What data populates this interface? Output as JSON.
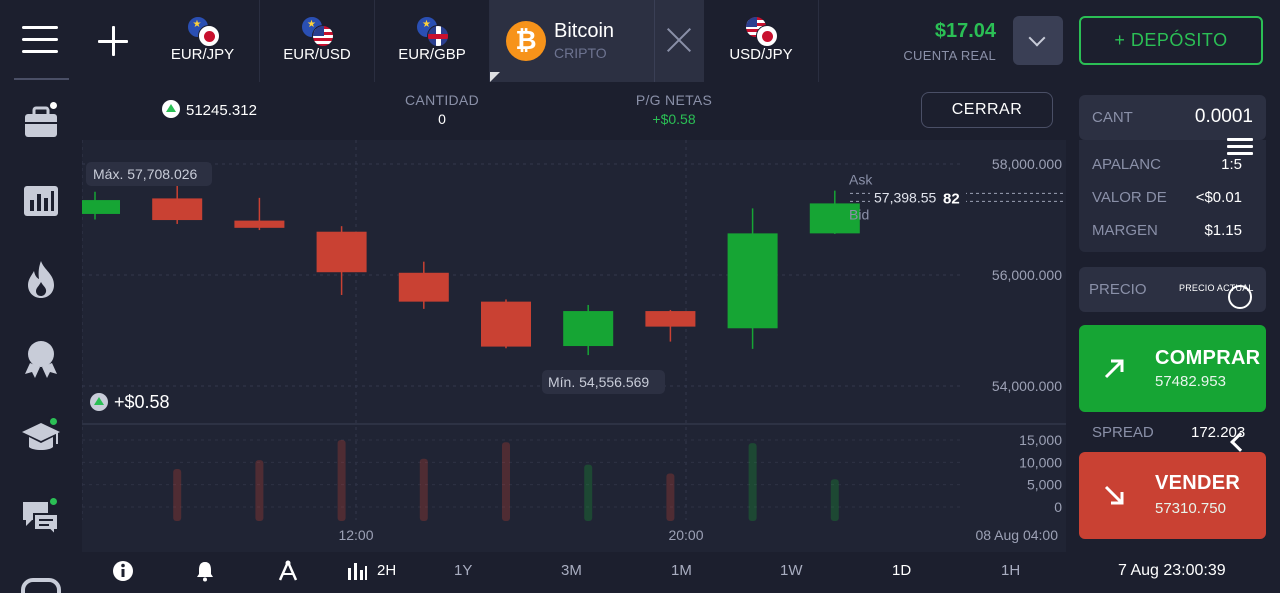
{
  "header": {
    "tabs": [
      {
        "label": "EUR/JPY",
        "flags": [
          "eu",
          "jp"
        ]
      },
      {
        "label": "EUR/USD",
        "flags": [
          "eu",
          "us"
        ]
      },
      {
        "label": "EUR/GBP",
        "flags": [
          "eu",
          "gb"
        ]
      },
      {
        "label": "USD/JPY",
        "flags": [
          "us",
          "jp"
        ]
      }
    ],
    "active_tab": {
      "name": "Bitcoin",
      "type": "CRIPTO",
      "icon": "bitcoin-icon"
    },
    "balance": "$17.04",
    "account_type": "CUENTA REAL",
    "deposit_label": "+ DEPÓSITO"
  },
  "sidebar": {
    "items": [
      {
        "name": "portfolio-icon",
        "badge": "white"
      },
      {
        "name": "chart-stats-icon",
        "badge": null
      },
      {
        "name": "fire-icon",
        "badge": null
      },
      {
        "name": "award-icon",
        "badge": null
      },
      {
        "name": "education-cap-icon",
        "badge": "green"
      },
      {
        "name": "chat-icon",
        "badge": "green"
      },
      {
        "name": "gamepad-icon",
        "badge": null
      }
    ]
  },
  "info_bar": {
    "price": "51245.312",
    "quantity_label": "CANTIDAD",
    "quantity_value": "0",
    "pnl_label": "P/G NETAS",
    "pnl_value": "+$0.58",
    "close_label": "CERRAR"
  },
  "chart": {
    "max_label": "Máx. 57,708.026",
    "min_label": "Mín. 54,556.569",
    "ask_label": "Ask",
    "bid_label": "Bid",
    "current_price_main": "57,398.55",
    "current_price_tail": "82",
    "pl_badge": "+$0.58"
  },
  "chart_data": {
    "type": "candlestick",
    "price_ticks": [
      "58,000.000",
      "56,000.000",
      "54,000.000"
    ],
    "price_tick_values": [
      58000,
      56000,
      54000
    ],
    "volume_ticks": [
      "15,000",
      "10,000",
      "5,000",
      "0"
    ],
    "volume_tick_values": [
      15000,
      10000,
      5000,
      0
    ],
    "time_ticks": [
      "12:00",
      "20:00",
      "08 Aug 04:00"
    ],
    "candles": [
      {
        "o": 57100,
        "c": 57350,
        "h": 57500,
        "l": 57000,
        "dir": "up"
      },
      {
        "o": 57380,
        "c": 56990,
        "h": 57708,
        "l": 56920,
        "dir": "down"
      },
      {
        "o": 56980,
        "c": 56850,
        "h": 57390,
        "l": 56810,
        "dir": "down"
      },
      {
        "o": 56780,
        "c": 56050,
        "h": 56880,
        "l": 55640,
        "dir": "down"
      },
      {
        "o": 56040,
        "c": 55520,
        "h": 56240,
        "l": 55390,
        "dir": "down"
      },
      {
        "o": 55520,
        "c": 54710,
        "h": 55560,
        "l": 54680,
        "dir": "down"
      },
      {
        "o": 54720,
        "c": 55350,
        "h": 55460,
        "l": 54557,
        "dir": "up"
      },
      {
        "o": 55350,
        "c": 55070,
        "h": 55370,
        "l": 54800,
        "dir": "down"
      },
      {
        "o": 55040,
        "c": 56750,
        "h": 57200,
        "l": 54670,
        "dir": "up"
      },
      {
        "o": 56750,
        "c": 57290,
        "h": 57520,
        "l": 56740,
        "dir": "up"
      }
    ],
    "volumes": [
      0,
      8500,
      10500,
      15000,
      10800,
      14500,
      9500,
      7500,
      14300,
      6200
    ]
  },
  "toolbar": {
    "intervals": [
      "2H",
      "1Y",
      "3M",
      "1M",
      "1W",
      "1D",
      "1H"
    ],
    "active": "1D",
    "datetime": "7 Aug 23:00:39"
  },
  "trade_panel": {
    "amount_label": "CANT",
    "amount_value": "0.0001",
    "leverage_label": "APALANC",
    "leverage_value": "1:5",
    "pip_label": "VALOR DE",
    "pip_value": "<$0.01",
    "margin_label": "MARGEN",
    "margin_value": "$1.15",
    "price_label": "PRECIO",
    "price_sub": "PRECIO ACTUAL",
    "buy_label": "COMPRAR",
    "buy_price": "57482.953",
    "spread_label": "SPREAD",
    "spread_value": "172.203",
    "sell_label": "VENDER",
    "sell_price": "57310.750"
  },
  "colors": {
    "up": "#16a534",
    "down": "#c94133",
    "accent_green": "#2bbf55"
  }
}
